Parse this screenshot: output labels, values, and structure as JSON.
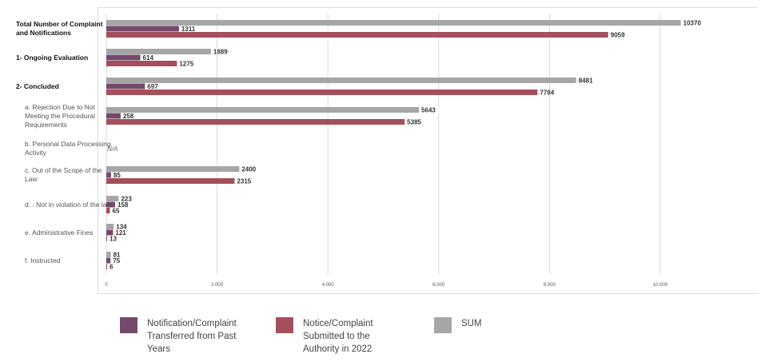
{
  "colors": {
    "past": "#74496b",
    "y2022": "#a4505a",
    "sum": "#a6a6a6"
  },
  "chart_data": {
    "type": "bar",
    "orientation": "horizontal",
    "categories": [
      "Total Number of Complaint and Notifications",
      "1- Ongoing Evaluation",
      "2- Concluded",
      "a. Rejection Due to Not Meeting the Procedural Requirements",
      "b. Personal Data Processing Activity",
      "c. Out of the Scope of the Law",
      "d. . Not in violation of the law",
      "e. Administrative Fines",
      "f. Instructed"
    ],
    "bold": [
      true,
      true,
      true,
      false,
      false,
      false,
      false,
      false,
      false
    ],
    "series": [
      {
        "name": "SUM",
        "key": "sum",
        "values": [
          10370,
          1889,
          8481,
          5643,
          null,
          2400,
          223,
          134,
          81
        ]
      },
      {
        "name": "Notification/Complaint Transferred from Past Years",
        "key": "past",
        "values": [
          1311,
          614,
          697,
          258,
          null,
          85,
          158,
          121,
          75
        ]
      },
      {
        "name": "Notice/Complaint Submitted to the Authority in 2022",
        "key": "y2022",
        "values": [
          9059,
          1275,
          7784,
          5385,
          null,
          2315,
          65,
          13,
          6
        ]
      }
    ],
    "na_label": "N/A",
    "xlim": [
      0,
      10000
    ],
    "xticks": [
      0,
      2000,
      4000,
      6000,
      8000,
      10000
    ],
    "xtick_labels": [
      "0",
      "2.000",
      "4.000",
      "6.000",
      "8.000",
      "10.000"
    ],
    "grid": true,
    "legend": "bottom"
  },
  "legend": [
    {
      "key": "past",
      "label": "Notification/Complaint Transferred from Past Years"
    },
    {
      "key": "y2022",
      "label": "Notice/Complaint Submitted to the Authority in 2022"
    },
    {
      "key": "sum",
      "label": "SUM"
    }
  ]
}
